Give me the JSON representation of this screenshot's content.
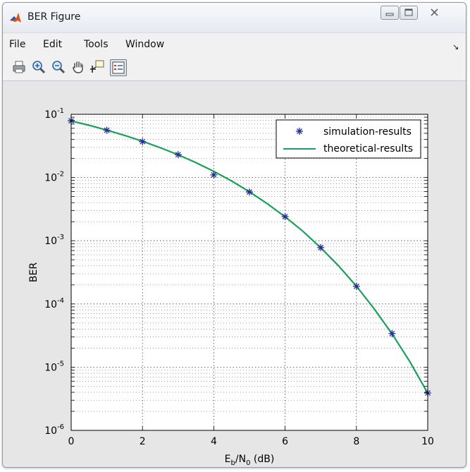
{
  "window": {
    "title": "BER Figure",
    "app_icon": "matlab-logo-icon",
    "buttons": {
      "minimize": "minimize-icon",
      "maximize": "maximize-icon",
      "close": "close-icon"
    }
  },
  "menu": {
    "items": [
      {
        "label": "File"
      },
      {
        "label": "Edit"
      },
      {
        "label": "Tools"
      },
      {
        "label": "Window"
      }
    ],
    "dock_arrow": "↘"
  },
  "toolbar": {
    "buttons": [
      {
        "icon": "print-icon"
      },
      {
        "icon": "zoom-in-icon"
      },
      {
        "icon": "zoom-out-icon"
      },
      {
        "icon": "pan-hand-icon"
      },
      {
        "icon": "data-cursor-icon"
      },
      {
        "icon": "legend-toggle-icon",
        "pressed": true
      }
    ]
  },
  "chart_data": {
    "type": "line",
    "xlabel_parts": {
      "main": "E",
      "sub1": "b",
      "mid": "/N",
      "sub2": "0",
      "tail": " (dB)"
    },
    "ylabel": "BER",
    "xlim": [
      0,
      10
    ],
    "ylim": [
      1e-06,
      0.1
    ],
    "yscale": "log",
    "x_ticks": [
      "0",
      "2",
      "4",
      "6",
      "8",
      "10"
    ],
    "y_ticks": [
      {
        "base": "10",
        "exp": "-1"
      },
      {
        "base": "10",
        "exp": "-2"
      },
      {
        "base": "10",
        "exp": "-3"
      },
      {
        "base": "10",
        "exp": "-4"
      },
      {
        "base": "10",
        "exp": "-5"
      },
      {
        "base": "10",
        "exp": "-6"
      }
    ],
    "grid": true,
    "minor_grid": true,
    "legend_position": "top-right",
    "series": [
      {
        "name": "simulation-results",
        "style": "markers",
        "marker": "*",
        "color": "#1f2f8f",
        "x": [
          0,
          1,
          2,
          3,
          4,
          5,
          6,
          7,
          8,
          9,
          10
        ],
        "y": [
          0.079,
          0.056,
          0.037,
          0.023,
          0.011,
          0.0059,
          0.0024,
          0.00078,
          0.00019,
          3.4e-05,
          3.9e-06
        ]
      },
      {
        "name": "theoretical-results",
        "style": "line",
        "color": "#1aa05a",
        "x": [
          0,
          0.5,
          1,
          1.5,
          2,
          2.5,
          3,
          3.5,
          4,
          4.5,
          5,
          5.5,
          6,
          6.5,
          7,
          7.5,
          8,
          8.5,
          9,
          9.5,
          10
        ],
        "y": [
          0.0786,
          0.0671,
          0.0563,
          0.0464,
          0.0375,
          0.0296,
          0.0229,
          0.0172,
          0.0125,
          0.00882,
          0.00595,
          0.00385,
          0.00239,
          0.00141,
          0.000773,
          0.000401,
          0.000191,
          8.36e-05,
          3.36e-05,
          1.22e-05,
          3.87e-06
        ]
      }
    ]
  }
}
